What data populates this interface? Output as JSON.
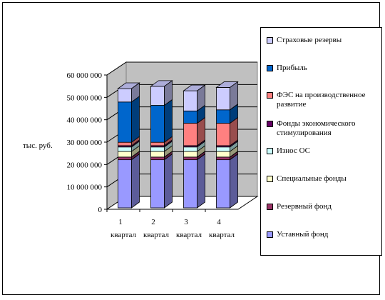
{
  "chart_data": {
    "type": "bar",
    "stacked": true,
    "three_d": true,
    "ylabel": "тыс. руб.",
    "ylim": [
      0,
      60000000
    ],
    "yticks": [
      0,
      10000000,
      20000000,
      30000000,
      40000000,
      50000000,
      60000000
    ],
    "ytick_labels": [
      "0",
      "10 000 000",
      "20 000 000",
      "30 000 000",
      "40 000 000",
      "50 000 000",
      "60 000 000"
    ],
    "categories": [
      {
        "num": "1",
        "word": "квартал"
      },
      {
        "num": "2",
        "word": "квартал"
      },
      {
        "num": "3",
        "word": "квартал"
      },
      {
        "num": "4",
        "word": "квартал"
      }
    ],
    "legend_position": "right",
    "series": [
      {
        "name": "Уставный фонд",
        "color": "#9999ff",
        "values": [
          21500000,
          21500000,
          21500000,
          21500000
        ]
      },
      {
        "name": "Резервный фонд",
        "color": "#993366",
        "values": [
          1200000,
          1200000,
          1200000,
          1200000
        ]
      },
      {
        "name": "Специальные фонды",
        "color": "#ffffcc",
        "values": [
          2500000,
          2500000,
          2500000,
          2500000
        ]
      },
      {
        "name": "Износ ОС",
        "color": "#ccffff",
        "values": [
          2000000,
          2000000,
          2000000,
          2000000
        ]
      },
      {
        "name": "Фонды экономического стимулирования",
        "color": "#660066",
        "values": [
          600000,
          600000,
          600000,
          600000
        ]
      },
      {
        "name": "ФЭС на производственное развитие",
        "color": "#ff8080",
        "values": [
          1500000,
          1500000,
          10000000,
          10000000
        ]
      },
      {
        "name": "Прибыль",
        "color": "#0066cc",
        "values": [
          18000000,
          16500000,
          5500000,
          6000000
        ]
      },
      {
        "name": "Страховые резервы",
        "color": "#ccccff",
        "values": [
          6000000,
          8500000,
          9000000,
          10000000
        ]
      }
    ]
  }
}
